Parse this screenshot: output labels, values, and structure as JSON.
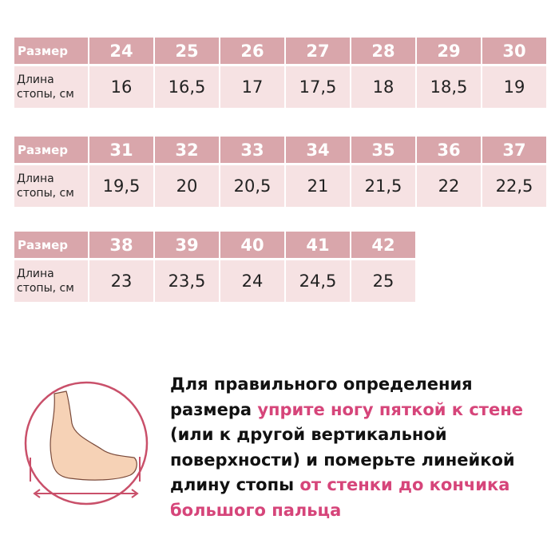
{
  "tables": [
    {
      "header_label": "Размер",
      "row_label": "Длина\nстопы, см",
      "sizes": [
        "24",
        "25",
        "26",
        "27",
        "28",
        "29",
        "30"
      ],
      "lengths": [
        "16",
        "16,5",
        "17",
        "17,5",
        "18",
        "18,5",
        "19"
      ]
    },
    {
      "header_label": "Размер",
      "row_label": "Длина\nстопы, см",
      "sizes": [
        "31",
        "32",
        "33",
        "34",
        "35",
        "36",
        "37"
      ],
      "lengths": [
        "19,5",
        "20",
        "20,5",
        "21",
        "21,5",
        "22",
        "22,5"
      ]
    },
    {
      "header_label": "Размер",
      "row_label": "Длина\nстопы, см",
      "sizes": [
        "38",
        "39",
        "40",
        "41",
        "42"
      ],
      "lengths": [
        "23",
        "23,5",
        "24",
        "24,5",
        "25"
      ]
    }
  ],
  "instructions": {
    "part1": "Для правильного определения размера ",
    "part2": "уприте ногу пяткой к стене",
    "part3": " (или к другой вертикальной поверхности) и померьте линейкой длину стопы ",
    "part4": "от стенки до кончика большого пальца"
  },
  "colors": {
    "header": "#d9a6ab",
    "body": "#f6e2e3",
    "accent": "#d6457a",
    "circle": "#c9506a"
  },
  "icons": [
    "foot-measure-icon"
  ]
}
